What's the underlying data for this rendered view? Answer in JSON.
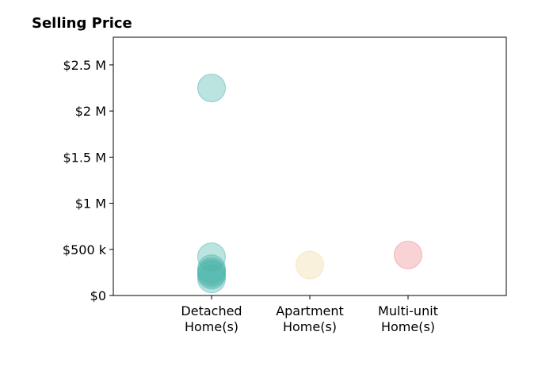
{
  "chart_data": {
    "type": "scatter",
    "title": "Selling Price",
    "xlabel": "",
    "ylabel": "",
    "categories": [
      [
        "Detached",
        "Home(s)"
      ],
      [
        "Apartment",
        "Home(s)"
      ],
      [
        "Multi-unit",
        "Home(s)"
      ]
    ],
    "ylim": [
      0,
      2800000
    ],
    "y_ticks": [
      {
        "value": 0,
        "label": "$0"
      },
      {
        "value": 500000,
        "label": "$500 k"
      },
      {
        "value": 1000000,
        "label": "$1 M"
      },
      {
        "value": 1500000,
        "label": "$1.5 M"
      },
      {
        "value": 2000000,
        "label": "$2 M"
      },
      {
        "value": 2500000,
        "label": "$2.5 M"
      }
    ],
    "grid": false,
    "legend": "none",
    "series": [
      {
        "category_index": 0,
        "color": "#4DB6AC",
        "values": [
          2250000,
          420000,
          290000,
          260000,
          240000,
          220000,
          180000
        ]
      },
      {
        "category_index": 1,
        "color": "#F3D9A4",
        "values": [
          330000
        ]
      },
      {
        "category_index": 2,
        "color": "#F08A94",
        "values": [
          440000
        ]
      }
    ]
  }
}
